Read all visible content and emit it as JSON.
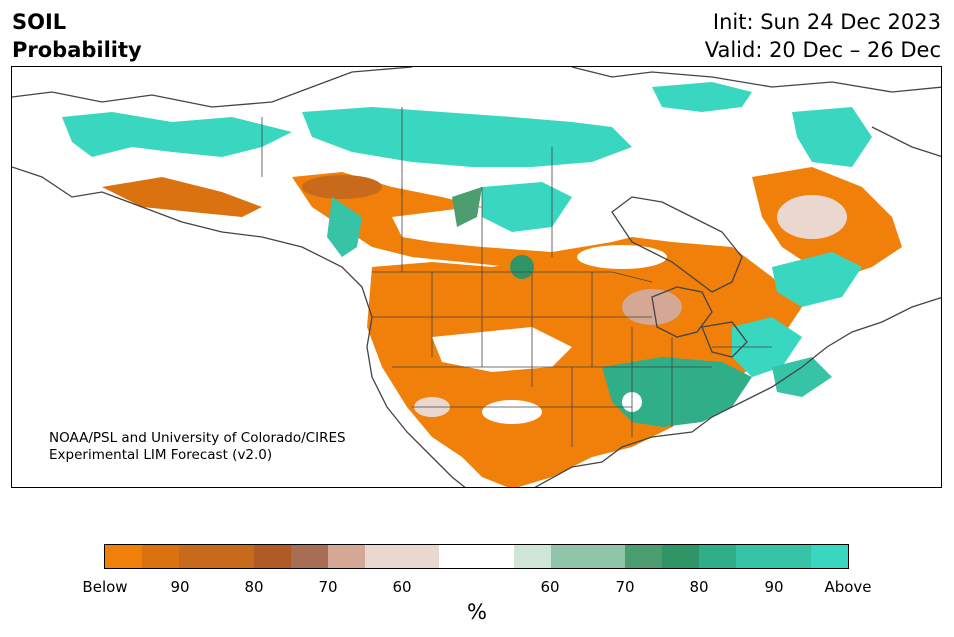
{
  "header": {
    "title_line1": "SOIL",
    "title_line2": "Probability",
    "init": "Init: Sun 24 Dec 2023",
    "valid": "Valid: 20 Dec – 26 Dec"
  },
  "credit": {
    "line1": "NOAA/PSL and University of Colorado/CIRES",
    "line2": "Experimental LIM Forecast (v2.0)"
  },
  "legend": {
    "unit": "%",
    "ticks": [
      "Below",
      "90",
      "80",
      "70",
      "60",
      "60",
      "70",
      "80",
      "90",
      "Above"
    ],
    "colors": [
      "#f0800a",
      "#d9720f",
      "#c86a1c",
      "#b05a26",
      "#a86d55",
      "#d4a895",
      "#ead8d0",
      "#ffffff",
      "#cfe5d8",
      "#8fc4a8",
      "#4c9e70",
      "#2f9566",
      "#2fae87",
      "#37c3a6",
      "#3ad7c0"
    ],
    "widths": [
      1,
      1,
      2,
      1,
      1,
      1,
      2,
      2,
      1,
      2,
      1,
      1,
      1,
      2,
      1
    ]
  },
  "map": {
    "region": "North America",
    "colors": {
      "below": "#f0800a",
      "below_mid": "#c86a1c",
      "neutral": "#ead8d0",
      "above_mid": "#2f9566",
      "above": "#3ad7c0",
      "land_outline": "#444444"
    }
  }
}
